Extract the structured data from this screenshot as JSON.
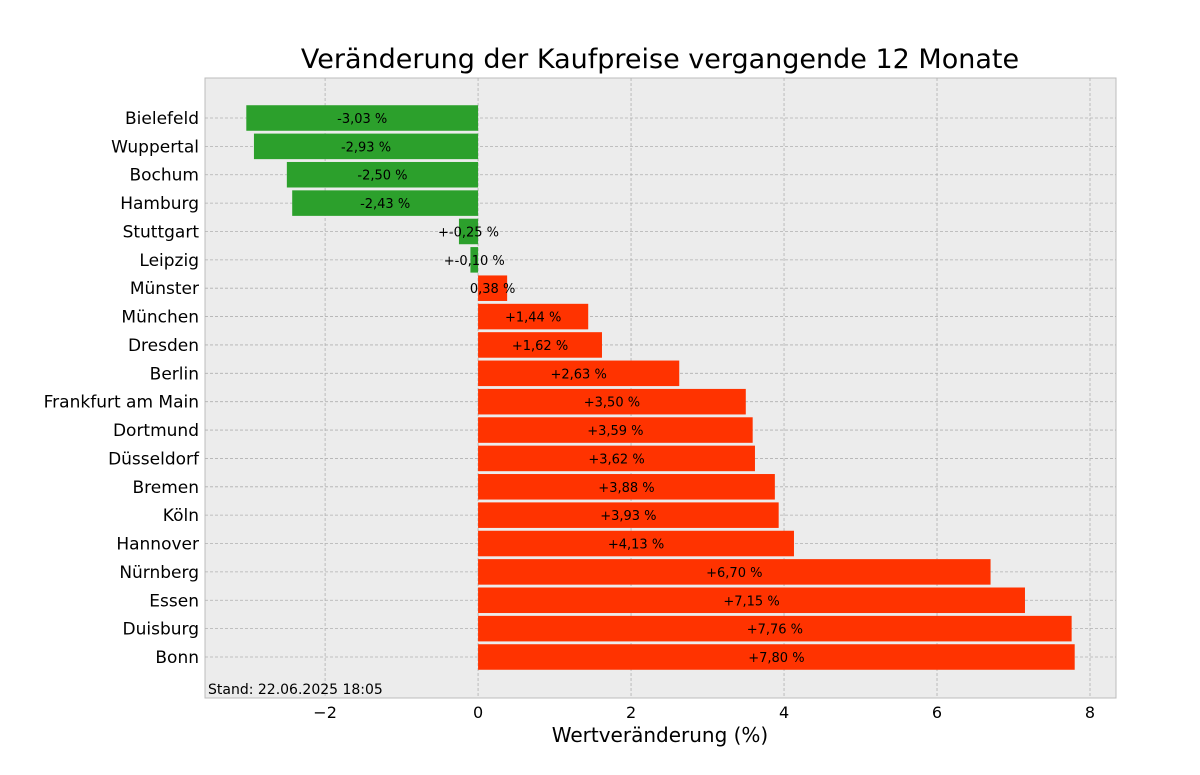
{
  "chart_data": {
    "type": "bar",
    "orientation": "horizontal",
    "title": "Veränderung der Kaufpreise vergangende 12 Monate",
    "xlabel": "Wertveränderung (%)",
    "ylabel": "",
    "xlim": [
      -3.57,
      8.34
    ],
    "xticks": [
      -2,
      0,
      2,
      4,
      6,
      8
    ],
    "xtick_labels": [
      "−2",
      "0",
      "2",
      "4",
      "6",
      "8"
    ],
    "grid": true,
    "footnote": "Stand: 22.06.2025 18:05",
    "colors": {
      "negative": "#2ca02c",
      "positive": "#ff3300",
      "background": "#ececec"
    },
    "categories": [
      "Bielefeld",
      "Wuppertal",
      "Bochum",
      "Hamburg",
      "Stuttgart",
      "Leipzig",
      "Münster",
      "München",
      "Dresden",
      "Berlin",
      "Frankfurt am Main",
      "Dortmund",
      "Düsseldorf",
      "Bremen",
      "Köln",
      "Hannover",
      "Nürnberg",
      "Essen",
      "Duisburg",
      "Bonn"
    ],
    "values": [
      -3.03,
      -2.93,
      -2.5,
      -2.43,
      -0.25,
      -0.1,
      0.38,
      1.44,
      1.62,
      2.63,
      3.5,
      3.59,
      3.62,
      3.88,
      3.93,
      4.13,
      6.7,
      7.15,
      7.76,
      7.8
    ],
    "labels": [
      "-3,03 %",
      "-2,93 %",
      "-2,50 %",
      "-2,43 %",
      "+-0,25 %",
      "+-0,10 %",
      "0,38 %",
      "+1,44 %",
      "+1,62 %",
      "+2,63 %",
      "+3,50 %",
      "+3,59 %",
      "+3,62 %",
      "+3,88 %",
      "+3,93 %",
      "+4,13 %",
      "+6,70 %",
      "+7,15 %",
      "+7,76 %",
      "+7,80 %"
    ]
  }
}
